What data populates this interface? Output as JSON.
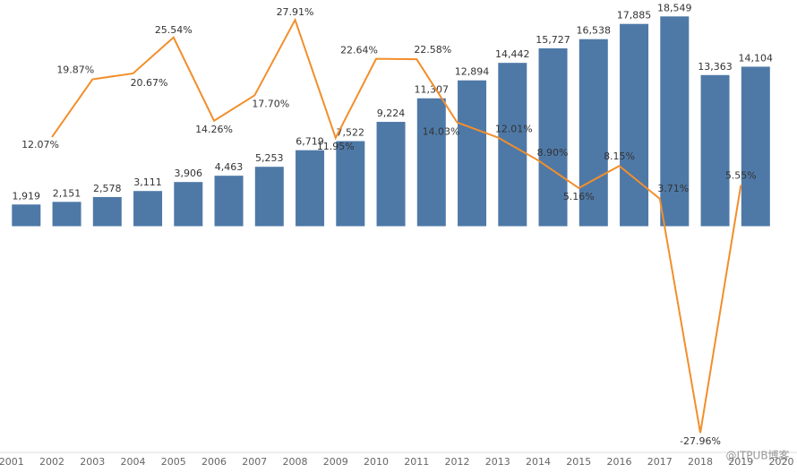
{
  "chart_data": {
    "type": "bar-line",
    "categories": [
      "2001",
      "2002",
      "2003",
      "2004",
      "2005",
      "2006",
      "2007",
      "2008",
      "2009",
      "2010",
      "2011",
      "2012",
      "2013",
      "2014",
      "2015",
      "2016",
      "2017",
      "2018",
      "2019",
      "2020"
    ],
    "series": [
      {
        "type": "bar",
        "color": "#4e79a7",
        "values": [
          1919,
          2151,
          2578,
          3111,
          3906,
          4463,
          5253,
          6719,
          7522,
          9224,
          11307,
          12894,
          14442,
          15727,
          16538,
          17885,
          18549,
          13363,
          14104,
          null
        ],
        "value_labels": [
          "1,919",
          "2,151",
          "2,578",
          "3,111",
          "3,906",
          "4,463",
          "5,253",
          "6,719",
          "7,522",
          "9,224",
          "11,307",
          "12,894",
          "14,442",
          "15,727",
          "16,538",
          "17,885",
          "18,549",
          "13,363",
          "14,104",
          null
        ]
      },
      {
        "type": "line",
        "axis": "y2",
        "color": "#f28e2b",
        "values": [
          null,
          12.07,
          19.87,
          20.67,
          25.54,
          14.26,
          17.7,
          27.91,
          11.95,
          22.64,
          22.58,
          14.03,
          12.01,
          8.9,
          5.16,
          8.15,
          3.71,
          -27.96,
          5.55,
          null
        ],
        "value_labels": [
          null,
          "12.07%",
          "19.87%",
          "20.67%",
          "25.54%",
          "14.26%",
          "17.70%",
          "27.91%",
          "11.95%",
          "22.64%",
          "22.58%",
          "14.03%",
          "12.01%",
          "8.90%",
          "5.16%",
          "8.15%",
          "3.71%",
          "-27.96%",
          "5.55%",
          null
        ]
      }
    ],
    "ylim": [
      -20000,
      20000
    ],
    "y2lim": [
      -30.6,
      30.6
    ],
    "watermark": "@ITPUB博客"
  }
}
